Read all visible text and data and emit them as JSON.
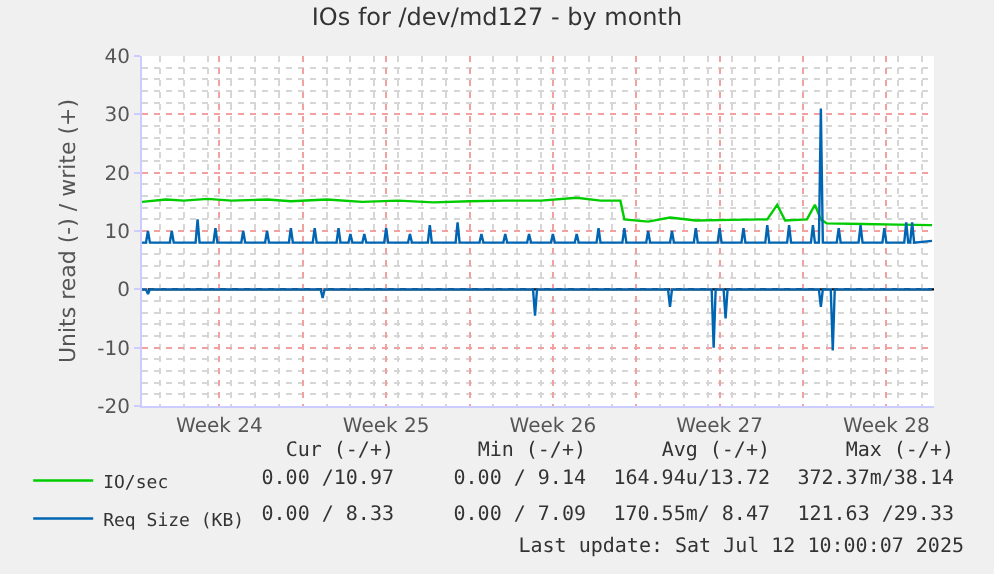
{
  "chart_data": {
    "type": "line",
    "title": "IOs for /dev/md127 - by month",
    "ylabel": "Units read (-) / write (+)",
    "xlim": [
      "2025-06-09T06:00",
      "2025-07-12T12:00"
    ],
    "xticks": [
      {
        "value": "2025-06-12T12:00",
        "label": "Week 24"
      },
      {
        "value": "2025-06-16T00:00",
        "label": null
      },
      {
        "value": "2025-06-19T12:00",
        "label": "Week 25"
      },
      {
        "value": "2025-06-23T00:00",
        "label": null
      },
      {
        "value": "2025-06-26T12:00",
        "label": "Week 26"
      },
      {
        "value": "2025-06-30T00:00",
        "label": null
      },
      {
        "value": "2025-07-03T12:00",
        "label": "Week 27"
      },
      {
        "value": "2025-07-07T00:00",
        "label": null
      },
      {
        "value": "2025-07-10T12:00",
        "label": "Week 28"
      }
    ],
    "ylim": [
      -20,
      40
    ],
    "yticks": [
      -20,
      -10,
      0,
      10,
      20,
      30,
      40
    ],
    "grid": true,
    "legend": "bottom left",
    "marker": "none",
    "line_style": "solid",
    "ref_lines": [
      {
        "axis": "y",
        "value": 0,
        "color": "#000000"
      }
    ],
    "series": [
      {
        "name": "IO/sec",
        "color": "#00cc00",
        "x": [
          "2025-06-09T06:00",
          "2025-06-10T06:00",
          "2025-06-11T00:00",
          "2025-06-12T00:00",
          "2025-06-13T00:00",
          "2025-06-14T12:00",
          "2025-06-15T12:00",
          "2025-06-17T00:00",
          "2025-06-18T12:00",
          "2025-06-20T00:00",
          "2025-06-21T12:00",
          "2025-06-23T00:00",
          "2025-06-24T12:00",
          "2025-06-26T00:00",
          "2025-06-27T12:00",
          "2025-06-28T12:00",
          "2025-06-29T08:00",
          "2025-06-29T12:00",
          "2025-06-30T12:00",
          "2025-07-01T10:00",
          "2025-07-02T12:00",
          "2025-07-04T00:00",
          "2025-07-05T12:00",
          "2025-07-05T22:00",
          "2025-07-06T06:00",
          "2025-07-07T04:00",
          "2025-07-07T12:00",
          "2025-07-07T18:00",
          "2025-07-08T00:00",
          "2025-07-09T12:00",
          "2025-07-11T00:00",
          "2025-07-12T10:00"
        ],
        "values": [
          15,
          15.4,
          15.2,
          15.5,
          15.2,
          15.4,
          15.1,
          15.4,
          15,
          15.2,
          14.9,
          15.1,
          15.2,
          15.2,
          15.7,
          15.2,
          15.2,
          12,
          11.6,
          12.3,
          11.8,
          11.9,
          12,
          14.5,
          11.8,
          12,
          14.5,
          12,
          11.3,
          11.2,
          11.1,
          11
        ]
      },
      {
        "name": "Req Size (KB)",
        "color": "#0066b3",
        "x": [
          "2025-06-09T06:00",
          "2025-06-09T10:00",
          "2025-06-09T12:00",
          "2025-06-09T14:00",
          "2025-06-10T10:00",
          "2025-06-10T12:00",
          "2025-06-10T14:00",
          "2025-06-11T12:00",
          "2025-06-11T14:00",
          "2025-06-11T16:00",
          "2025-06-12T06:00",
          "2025-06-12T08:00",
          "2025-06-12T10:00",
          "2025-06-13T10:00",
          "2025-06-13T12:00",
          "2025-06-13T14:00",
          "2025-06-14T10:00",
          "2025-06-14T12:00",
          "2025-06-14T14:00",
          "2025-06-15T10:00",
          "2025-06-15T12:00",
          "2025-06-15T14:00",
          "2025-06-16T10:00",
          "2025-06-16T12:00",
          "2025-06-16T14:00",
          "2025-06-17T10:00",
          "2025-06-17T12:00",
          "2025-06-17T14:00",
          "2025-06-17T22:00",
          "2025-06-18T00:00",
          "2025-06-18T02:00",
          "2025-06-18T12:00",
          "2025-06-18T14:00",
          "2025-06-18T16:00",
          "2025-06-19T10:00",
          "2025-06-19T12:00",
          "2025-06-19T14:00",
          "2025-06-20T10:00",
          "2025-06-20T12:00",
          "2025-06-20T14:00",
          "2025-06-21T06:00",
          "2025-06-21T08:00",
          "2025-06-21T10:00",
          "2025-06-22T10:00",
          "2025-06-22T12:00",
          "2025-06-22T14:00",
          "2025-06-23T10:00",
          "2025-06-23T12:00",
          "2025-06-23T14:00",
          "2025-06-24T10:00",
          "2025-06-24T12:00",
          "2025-06-24T14:00",
          "2025-06-25T10:00",
          "2025-06-25T12:00",
          "2025-06-25T14:00",
          "2025-06-26T10:00",
          "2025-06-26T12:00",
          "2025-06-26T14:00",
          "2025-06-27T10:00",
          "2025-06-27T12:00",
          "2025-06-27T14:00",
          "2025-06-28T08:00",
          "2025-06-28T10:00",
          "2025-06-28T12:00",
          "2025-06-29T10:00",
          "2025-06-29T12:00",
          "2025-06-29T14:00",
          "2025-06-30T10:00",
          "2025-06-30T12:00",
          "2025-06-30T14:00",
          "2025-07-01T10:00",
          "2025-07-01T12:00",
          "2025-07-01T14:00",
          "2025-07-02T10:00",
          "2025-07-02T12:00",
          "2025-07-02T14:00",
          "2025-07-03T10:00",
          "2025-07-03T12:00",
          "2025-07-03T14:00",
          "2025-07-04T10:00",
          "2025-07-04T12:00",
          "2025-07-04T14:00",
          "2025-07-05T10:00",
          "2025-07-05T12:00",
          "2025-07-05T14:00",
          "2025-07-06T08:00",
          "2025-07-06T10:00",
          "2025-07-06T12:00",
          "2025-07-07T08:00",
          "2025-07-07T10:00",
          "2025-07-07T12:00",
          "2025-07-07T16:00",
          "2025-07-07T18:00",
          "2025-07-07T20:00",
          "2025-07-08T10:00",
          "2025-07-08T12:00",
          "2025-07-08T14:00",
          "2025-07-09T08:00",
          "2025-07-09T10:00",
          "2025-07-09T12:00",
          "2025-07-10T08:00",
          "2025-07-10T10:00",
          "2025-07-10T12:00",
          "2025-07-11T06:00",
          "2025-07-11T08:00",
          "2025-07-11T10:00",
          "2025-07-11T12:00",
          "2025-07-11T14:00",
          "2025-07-11T16:00",
          "2025-07-12T10:00"
        ],
        "values": [
          8,
          8,
          10,
          8,
          8,
          10,
          8,
          8,
          12,
          8,
          8,
          10.5,
          8,
          8,
          10,
          8,
          8,
          10,
          8,
          8,
          10.5,
          8,
          8,
          10.5,
          8,
          8,
          10.5,
          8,
          8,
          9.5,
          8,
          8,
          9.5,
          8,
          8,
          10.5,
          8,
          8,
          9.5,
          8,
          8,
          11,
          8,
          8,
          11.5,
          8,
          8,
          9.5,
          8,
          8,
          9.5,
          8,
          8,
          9.5,
          8,
          8,
          9.5,
          8,
          8,
          9.5,
          8,
          8,
          10.5,
          8,
          8,
          10.5,
          8,
          8,
          10,
          8,
          8,
          10,
          8,
          8,
          10.5,
          8,
          8,
          10.5,
          8,
          8,
          10.5,
          8,
          8,
          11,
          8,
          8,
          11,
          8,
          8,
          11,
          8,
          8,
          31,
          8,
          8,
          10.5,
          8,
          8,
          11,
          8,
          8,
          10.5,
          8,
          8,
          11.5,
          8,
          8,
          11.5,
          8,
          8.3
        ]
      },
      {
        "color": "#0066b3",
        "x": [
          "2025-06-09T06:00",
          "2025-06-09T10:00",
          "2025-06-09T12:00",
          "2025-06-09T14:00",
          "2025-06-16T18:00",
          "2025-06-16T20:00",
          "2025-06-16T22:00",
          "2025-06-25T16:00",
          "2025-06-25T18:00",
          "2025-06-25T20:00",
          "2025-07-01T08:00",
          "2025-07-01T10:00",
          "2025-07-01T12:00",
          "2025-07-03T04:00",
          "2025-07-03T06:00",
          "2025-07-03T08:00",
          "2025-07-03T16:00",
          "2025-07-03T18:00",
          "2025-07-03T20:00",
          "2025-07-07T16:00",
          "2025-07-07T18:00",
          "2025-07-07T20:00",
          "2025-07-08T04:00",
          "2025-07-08T06:00",
          "2025-07-08T08:00",
          "2025-07-12T10:00"
        ],
        "values": [
          0,
          0,
          -0.8,
          0,
          0,
          -1.5,
          0,
          0,
          -4.5,
          0,
          0,
          -3,
          0,
          0,
          -10,
          0,
          0,
          -5,
          0,
          0,
          -3,
          0,
          0,
          -10.5,
          0,
          0
        ]
      }
    ],
    "annotations": [
      "Cur (-/+)",
      "Min (-/+)",
      "Avg (-/+)",
      "Max (-/+)",
      "0.00 /10.97",
      "0.00 / 9.14",
      "164.94u/13.72",
      "372.37m/38.14",
      "0.00 / 8.33",
      "0.00 / 7.09",
      "170.55m/ 8.47",
      "121.63 /29.33",
      "Last update: Sat Jul 12 10:00:07 2025"
    ]
  }
}
